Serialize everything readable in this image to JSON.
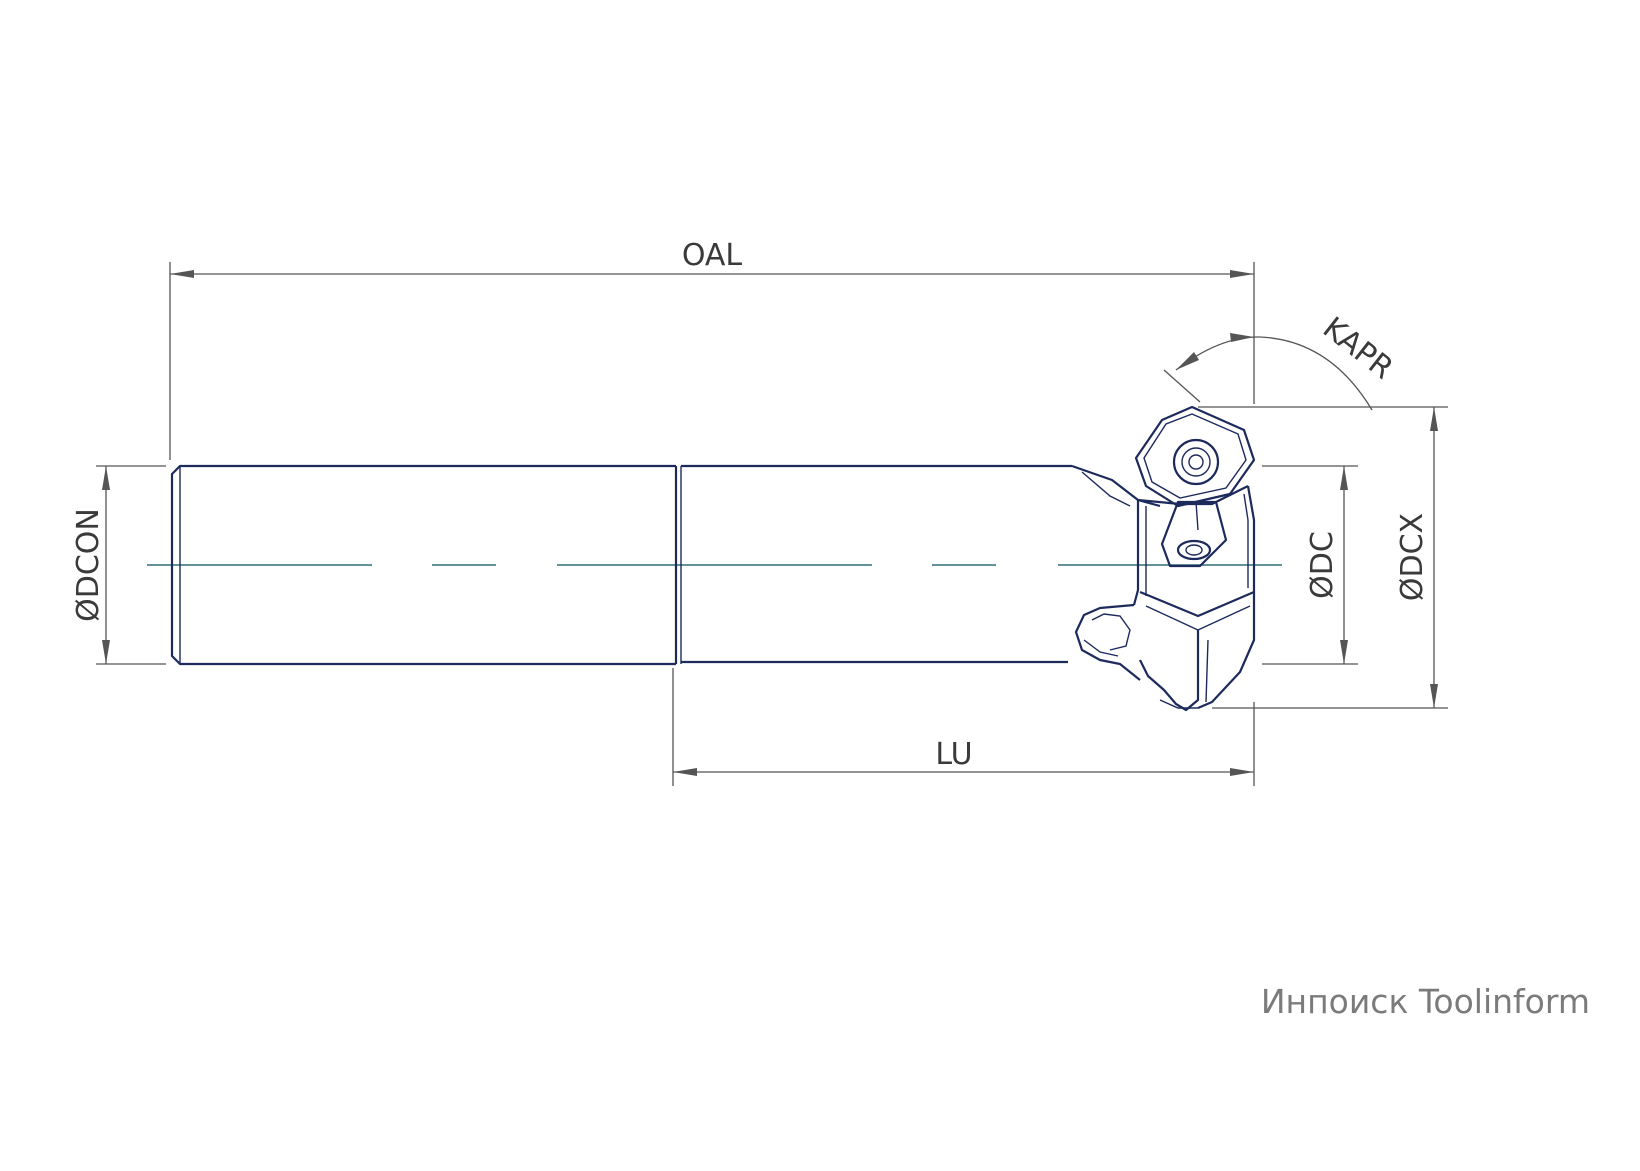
{
  "diagram": {
    "labels": {
      "oal": "OAL",
      "lu": "LU",
      "dcon": "ØDCON",
      "dc": "ØDC",
      "dcx": "ØDCX",
      "kapr": "KAPR"
    },
    "watermark": "Инпоиск Toolinform",
    "colors": {
      "part_outline": "#1c2a5c",
      "centerline": "#2f6f7a",
      "dimension_lines": "#555555",
      "watermark": "#7b7b7b"
    }
  }
}
